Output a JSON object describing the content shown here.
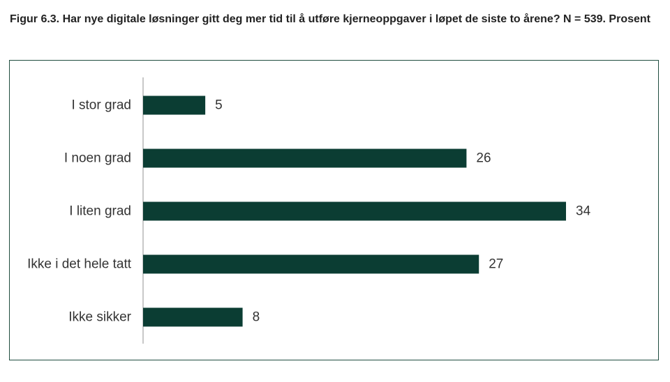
{
  "chart_data": {
    "type": "bar",
    "orientation": "horizontal",
    "title": "Figur 6.3. Har nye digitale løsninger gitt deg mer tid til å utføre kjerneoppgaver i løpet de siste to årene? N = 539. Prosent",
    "categories": [
      "I stor grad",
      "I noen grad",
      "I liten grad",
      "Ikke i det hele tatt",
      "Ikke sikker"
    ],
    "values": [
      5,
      26,
      34,
      27,
      8
    ],
    "xlabel": "",
    "ylabel": "",
    "xlim": [
      0,
      34
    ],
    "grid": false,
    "legend": "none",
    "bar_color": "#0b3d33"
  }
}
